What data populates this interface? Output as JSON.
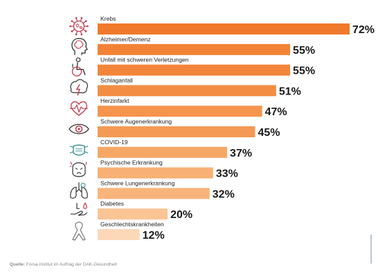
{
  "chart_data": {
    "type": "bar",
    "orientation": "horizontal",
    "categories": [
      "Krebs",
      "Alzheimer/Demenz",
      "Unfall mit schweren Verletzungen",
      "Schlaganfall",
      "Herzinfarkt",
      "Schwere Augenerkrankung",
      "COVID-19",
      "Psychische Erkrankung",
      "Schwere Lungenerkrankung",
      "Diabetes",
      "Geschlechtskrankheiten"
    ],
    "values": [
      72,
      55,
      55,
      51,
      47,
      45,
      37,
      33,
      32,
      20,
      12
    ],
    "value_labels": [
      "72%",
      "55%",
      "55%",
      "51%",
      "47%",
      "45%",
      "37%",
      "33%",
      "32%",
      "20%",
      "12%"
    ],
    "icons": [
      "cancer-cell-icon",
      "brain-head-icon",
      "wheelchair-icon",
      "brain-lightning-icon",
      "heart-pulse-icon",
      "eye-icon",
      "face-mask-icon",
      "distressed-face-icon",
      "lungs-icon",
      "hand-droplet-icon",
      "awareness-ribbon-icon"
    ],
    "bar_colors": [
      "#f0792c",
      "#f28236",
      "#f28539",
      "#f38d43",
      "#f5944c",
      "#f59a54",
      "#f7a765",
      "#f8b074",
      "#f8b47a",
      "#fac495",
      "#fcd8b8"
    ],
    "icon_color": "#c2394d",
    "axis_max": 72,
    "grid": false
  },
  "source": {
    "label": "Quelle:",
    "text": "Forsa-Institut im Auftrag der DAK-Gesundheit"
  }
}
